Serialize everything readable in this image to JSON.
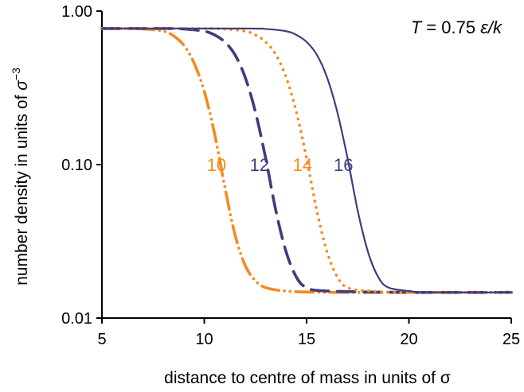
{
  "colors": {
    "orange": "#F58A1F",
    "navy": "#3F3D7F",
    "axis": "#000000"
  },
  "chart_data": {
    "type": "line",
    "title": "",
    "xlabel": "distance to centre of mass in units of σ",
    "ylabel_prefix": "number density in units of ",
    "ylabel_sigma": "σ",
    "ylabel_exp": "−3",
    "annotation": {
      "T": "T",
      "rest": " = 0.75 ",
      "eps": "ε",
      "slash_k": "/k"
    },
    "xlim": [
      5,
      25
    ],
    "ylim": [
      0.01,
      1.0
    ],
    "y_scale": "log",
    "x_ticks": [
      "5",
      "10",
      "15",
      "20",
      "25"
    ],
    "y_ticks": [
      "0.01",
      "0.10",
      "1.00"
    ],
    "grid": false,
    "legend": "none",
    "series": [
      {
        "name": "10",
        "color": "#F58A1F",
        "dash": "dashdotdot",
        "x": [
          5,
          6,
          7,
          8,
          8.5,
          9,
          9.5,
          10,
          10.5,
          11,
          11.5,
          12,
          12.5,
          13,
          14,
          16,
          20,
          25
        ],
        "y": [
          0.77,
          0.77,
          0.765,
          0.74,
          0.69,
          0.6,
          0.46,
          0.3,
          0.16,
          0.072,
          0.035,
          0.022,
          0.0175,
          0.0158,
          0.015,
          0.0147,
          0.0147,
          0.0147
        ]
      },
      {
        "name": "12",
        "color": "#3F3D7F",
        "dash": "dashed",
        "x": [
          5,
          8,
          9,
          10,
          10.5,
          11,
          11.5,
          12,
          12.5,
          13,
          13.5,
          14,
          14.5,
          15,
          16,
          20,
          25
        ],
        "y": [
          0.77,
          0.77,
          0.765,
          0.74,
          0.7,
          0.63,
          0.52,
          0.37,
          0.22,
          0.11,
          0.05,
          0.027,
          0.0185,
          0.0158,
          0.015,
          0.0147,
          0.0147
        ]
      },
      {
        "name": "14",
        "color": "#F58A1F",
        "dash": "dotted",
        "x": [
          5,
          10,
          11,
          12,
          12.5,
          13,
          13.5,
          14,
          14.5,
          15,
          15.5,
          16,
          16.5,
          17,
          18,
          20,
          25
        ],
        "y": [
          0.77,
          0.77,
          0.765,
          0.74,
          0.7,
          0.63,
          0.52,
          0.37,
          0.22,
          0.11,
          0.05,
          0.027,
          0.0185,
          0.0158,
          0.015,
          0.0147,
          0.0147
        ]
      },
      {
        "name": "16",
        "color": "#3F3D7F",
        "dash": "solid",
        "x": [
          5,
          12,
          13,
          14,
          14.5,
          15,
          15.5,
          16,
          16.5,
          17,
          17.5,
          18,
          18.5,
          19,
          20,
          21,
          25
        ],
        "y": [
          0.77,
          0.77,
          0.765,
          0.74,
          0.7,
          0.63,
          0.52,
          0.37,
          0.22,
          0.11,
          0.05,
          0.027,
          0.0185,
          0.0158,
          0.015,
          0.0147,
          0.0147
        ]
      }
    ],
    "curve_labels": [
      {
        "text": "10",
        "color": "#F58A1F",
        "x": 10.6,
        "y": 0.1
      },
      {
        "text": "12",
        "color": "#3F3D7F",
        "x": 12.7,
        "y": 0.1
      },
      {
        "text": "14",
        "color": "#F58A1F",
        "x": 14.8,
        "y": 0.1
      },
      {
        "text": "16",
        "color": "#3F3D7F",
        "x": 16.8,
        "y": 0.1
      }
    ]
  }
}
